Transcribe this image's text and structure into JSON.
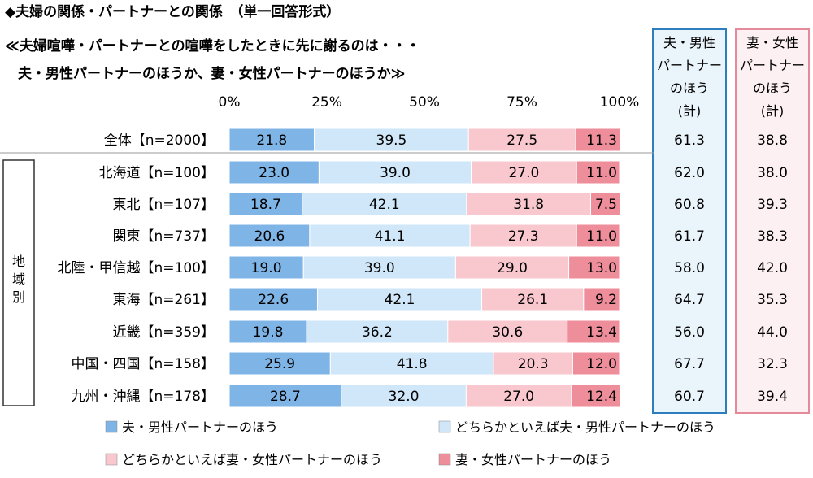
{
  "header": {
    "title": "◆夫婦の関係・パートナーとの関係　（単一回答形式）",
    "question_line1": "≪夫婦喧嘩・パートナーとの喧嘩をしたときに先に謝るのは・・・",
    "question_line2": "夫・男性パートナーのほうか、妻・女性パートナーのほうか≫"
  },
  "side_columns": [
    {
      "header": [
        "夫・男性",
        "パートナー",
        "のほう",
        "(計)"
      ],
      "color": "#1f6fb2",
      "bg": "#e8f3fb"
    },
    {
      "header": [
        "妻・女性",
        "パートナー",
        "のほう",
        "(計)"
      ],
      "color": "#e58a9b",
      "bg": "#fdeff2"
    }
  ],
  "group_label": "地域別",
  "chart_data": {
    "type": "bar",
    "stacked": true,
    "orientation": "horizontal",
    "xlim": [
      0,
      100
    ],
    "x_ticks": [
      "0%",
      "25%",
      "50%",
      "75%",
      "100%"
    ],
    "categories": [
      "全体【n=2000】",
      "北海道【n=100】",
      "東北【n=107】",
      "関東【n=737】",
      "北陸・甲信越【n=100】",
      "東海【n=261】",
      "近畿【n=359】",
      "中国・四国【n=158】",
      "九州・沖縄【n=178】"
    ],
    "series": [
      {
        "name": "夫・男性パートナーのほう",
        "color": "#7fb4e6",
        "values": [
          21.8,
          23.0,
          18.7,
          20.6,
          19.0,
          22.6,
          19.8,
          25.9,
          28.7
        ]
      },
      {
        "name": "どちらかといえば夫・男性パートナーのほう",
        "color": "#cfe7f8",
        "values": [
          39.5,
          39.0,
          42.1,
          41.1,
          39.0,
          42.1,
          36.2,
          41.8,
          32.0
        ]
      },
      {
        "name": "どちらかといえば妻・女性パートナーのほう",
        "color": "#f9c7ce",
        "values": [
          27.5,
          27.0,
          31.8,
          27.3,
          29.0,
          26.1,
          30.6,
          20.3,
          27.0
        ]
      },
      {
        "name": "妻・女性パートナーのほう",
        "color": "#ef8e9b",
        "values": [
          11.3,
          11.0,
          7.5,
          11.0,
          13.0,
          9.2,
          13.4,
          12.0,
          12.4
        ]
      }
    ],
    "husband_total": [
      "61.3",
      "62.0",
      "60.8",
      "61.7",
      "58.0",
      "64.7",
      "56.0",
      "67.7",
      "60.7"
    ],
    "wife_total": [
      "38.8",
      "38.0",
      "39.3",
      "38.3",
      "42.0",
      "35.3",
      "44.0",
      "32.3",
      "39.4"
    ]
  }
}
